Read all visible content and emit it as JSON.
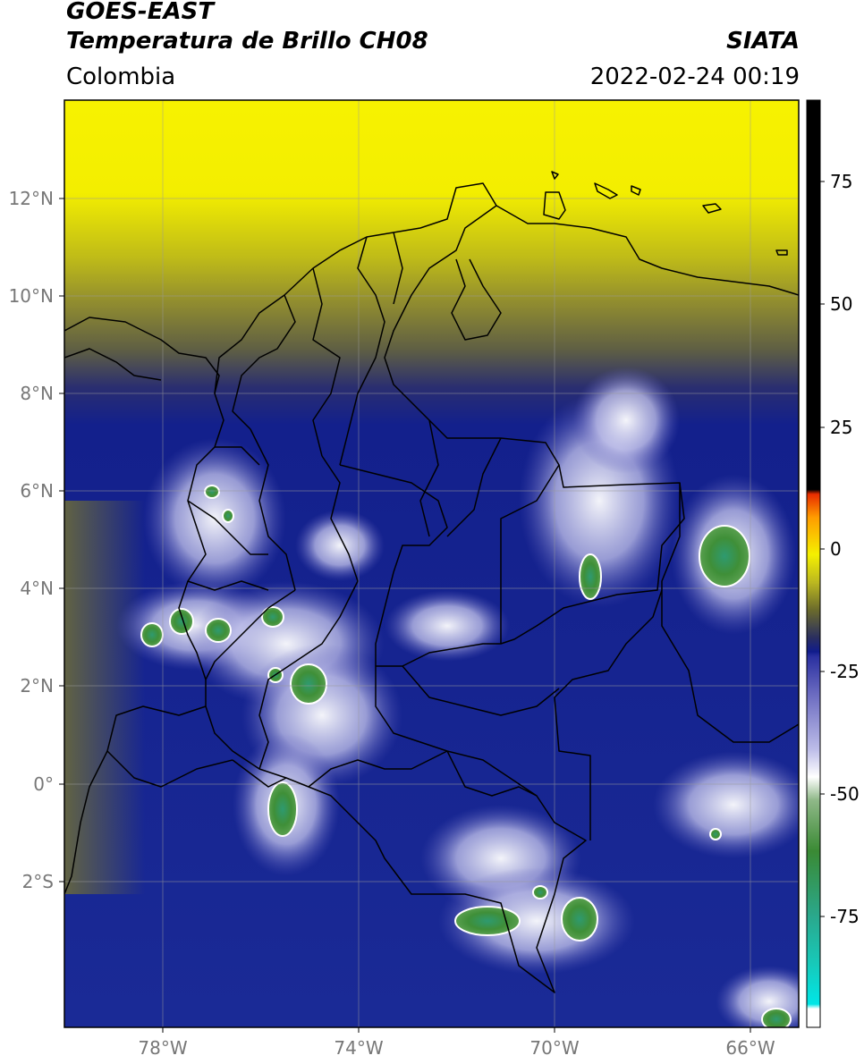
{
  "header": {
    "satellite": "GOES-EAST",
    "product": "Temperatura de Brillo CH08",
    "region": "Colombia",
    "organization": "SIATA",
    "timestamp": "2022-02-24 00:19"
  },
  "map": {
    "lat_ticks": [
      "12°N",
      "10°N",
      "8°N",
      "6°N",
      "4°N",
      "2°N",
      "0°",
      "2°S"
    ],
    "lon_ticks": [
      "78°W",
      "74°W",
      "70°W",
      "66°W"
    ],
    "lon_range": [
      -80,
      -65
    ],
    "lat_range": [
      -4.8,
      14.2
    ],
    "gridlines": true
  },
  "colorbar": {
    "ticks": [
      "75",
      "50",
      "25",
      "0",
      "-25",
      "-50",
      "-75"
    ],
    "range": [
      -95,
      90
    ],
    "colors": {
      "hot": "#000000",
      "red": "#e82c00",
      "orange": "#ff9c00",
      "yellow": "#f5f000",
      "olive": "#6a6a2c",
      "navy": "#101c8c",
      "lavender": "#bcbce8",
      "white": "#ffffff",
      "green": "#3a8a34",
      "teal": "#2aa88c",
      "cyan": "#00e6e6"
    }
  }
}
